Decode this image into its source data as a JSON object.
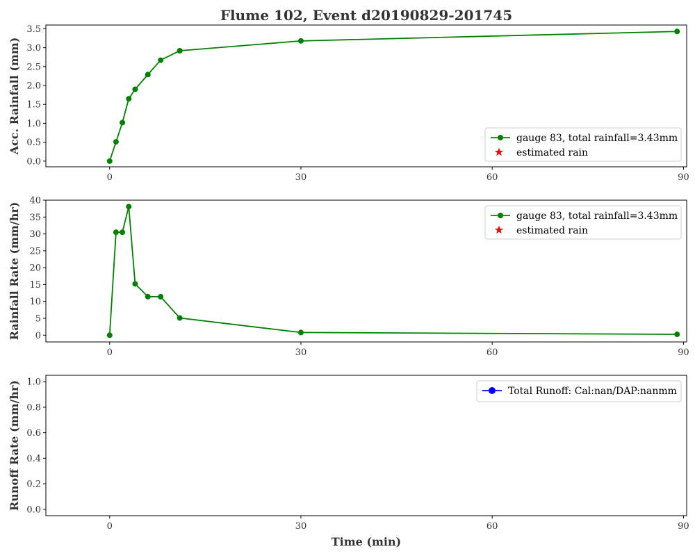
{
  "figure": {
    "title": "Flume 102, Event d20190829-201745"
  },
  "chart_data": [
    {
      "type": "line",
      "title": "",
      "xlabel": "",
      "ylabel": "Acc. Rainfall (mm)",
      "xlim": [
        -10,
        90.5
      ],
      "ylim": [
        -0.15,
        3.6
      ],
      "xticks": [
        0,
        30,
        60,
        90
      ],
      "yticks": [
        0.0,
        0.5,
        1.0,
        1.5,
        2.0,
        2.5,
        3.0,
        3.5
      ],
      "ytick_labels": [
        "0.0",
        "0.5",
        "1.0",
        "1.5",
        "2.0",
        "2.5",
        "3.0",
        "3.5"
      ],
      "grid": false,
      "legend_position": "lower-right",
      "series": [
        {
          "name": "gauge 83, total rainfall=3.43mm",
          "color": "#008000",
          "marker": "circle",
          "x": [
            0,
            1,
            2,
            3,
            4,
            6,
            8,
            11,
            30,
            89
          ],
          "y": [
            0.0,
            0.51,
            1.02,
            1.65,
            1.9,
            2.29,
            2.67,
            2.92,
            3.18,
            3.43
          ]
        },
        {
          "name": "estimated rain",
          "color": "#ff0000",
          "marker": "star",
          "x": [],
          "y": []
        }
      ]
    },
    {
      "type": "line",
      "title": "",
      "xlabel": "",
      "ylabel": "Rainfall Rate (mm/hr)",
      "xlim": [
        -10,
        90.5
      ],
      "ylim": [
        -2,
        40
      ],
      "xticks": [
        0,
        30,
        60,
        90
      ],
      "yticks": [
        0,
        5,
        10,
        15,
        20,
        25,
        30,
        35,
        40
      ],
      "ytick_labels": [
        "0",
        "5",
        "10",
        "15",
        "20",
        "25",
        "30",
        "35",
        "40"
      ],
      "grid": false,
      "legend_position": "upper-right",
      "series": [
        {
          "name": "gauge 83, total rainfall=3.43mm",
          "color": "#008000",
          "marker": "circle",
          "x": [
            0,
            1,
            2,
            3,
            4,
            6,
            8,
            11,
            30,
            89
          ],
          "y": [
            0.0,
            30.5,
            30.5,
            38.1,
            15.2,
            11.4,
            11.4,
            5.1,
            0.8,
            0.26
          ]
        },
        {
          "name": "estimated rain",
          "color": "#ff0000",
          "marker": "star",
          "x": [],
          "y": []
        }
      ]
    },
    {
      "type": "line",
      "title": "",
      "xlabel": "Time (min)",
      "ylabel": "Runoff Rate (mm/hr)",
      "xlim": [
        -10,
        90.5
      ],
      "ylim": [
        -0.05,
        1.05
      ],
      "xticks": [
        0,
        30,
        60,
        90
      ],
      "yticks": [
        0.0,
        0.2,
        0.4,
        0.6,
        0.8,
        1.0
      ],
      "ytick_labels": [
        "0.0",
        "0.2",
        "0.4",
        "0.6",
        "0.8",
        "1.0"
      ],
      "grid": false,
      "legend_position": "upper-right",
      "series": [
        {
          "name": "Total Runoff: Cal:nan/DAP:nanmm",
          "color": "#0000ff",
          "marker": "circle",
          "x": [],
          "y": []
        }
      ]
    }
  ]
}
